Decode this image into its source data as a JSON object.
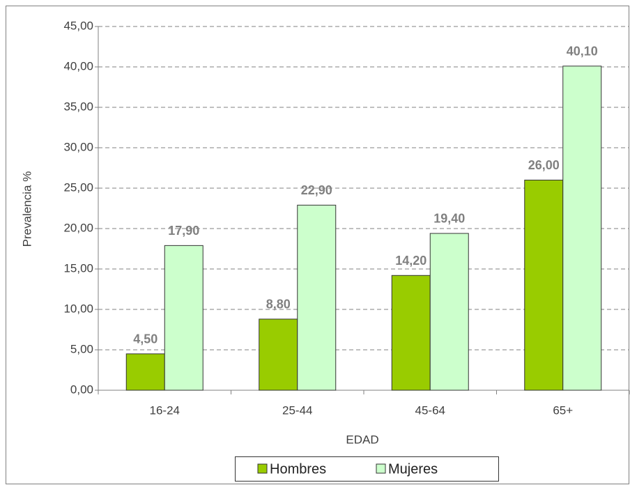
{
  "chart_data": {
    "type": "bar",
    "categories": [
      "16-24",
      "25-44",
      "45-64",
      "65+"
    ],
    "series": [
      {
        "name": "Hombres",
        "color": "#99cc00",
        "values": [
          4.5,
          8.8,
          14.2,
          26.0
        ],
        "value_labels": [
          "4,50",
          "8,80",
          "14,20",
          "26,00"
        ]
      },
      {
        "name": "Mujeres",
        "color": "#ccffcc",
        "values": [
          17.9,
          22.9,
          19.4,
          40.1
        ],
        "value_labels": [
          "17,90",
          "22,90",
          "19,40",
          "40,10"
        ]
      }
    ],
    "ylim": [
      0,
      45
    ],
    "yticks": [
      {
        "value": 0,
        "label": "0,00"
      },
      {
        "value": 5,
        "label": "5,00"
      },
      {
        "value": 10,
        "label": "10,00"
      },
      {
        "value": 15,
        "label": "15,00"
      },
      {
        "value": 20,
        "label": "20,00"
      },
      {
        "value": 25,
        "label": "25,00"
      },
      {
        "value": 30,
        "label": "30,00"
      },
      {
        "value": 35,
        "label": "35,00"
      },
      {
        "value": 40,
        "label": "40,00"
      },
      {
        "value": 45,
        "label": "45,00"
      }
    ],
    "xlabel": "EDAD",
    "ylabel": "Prevalencia %",
    "grid": true,
    "legend": "bottom"
  }
}
